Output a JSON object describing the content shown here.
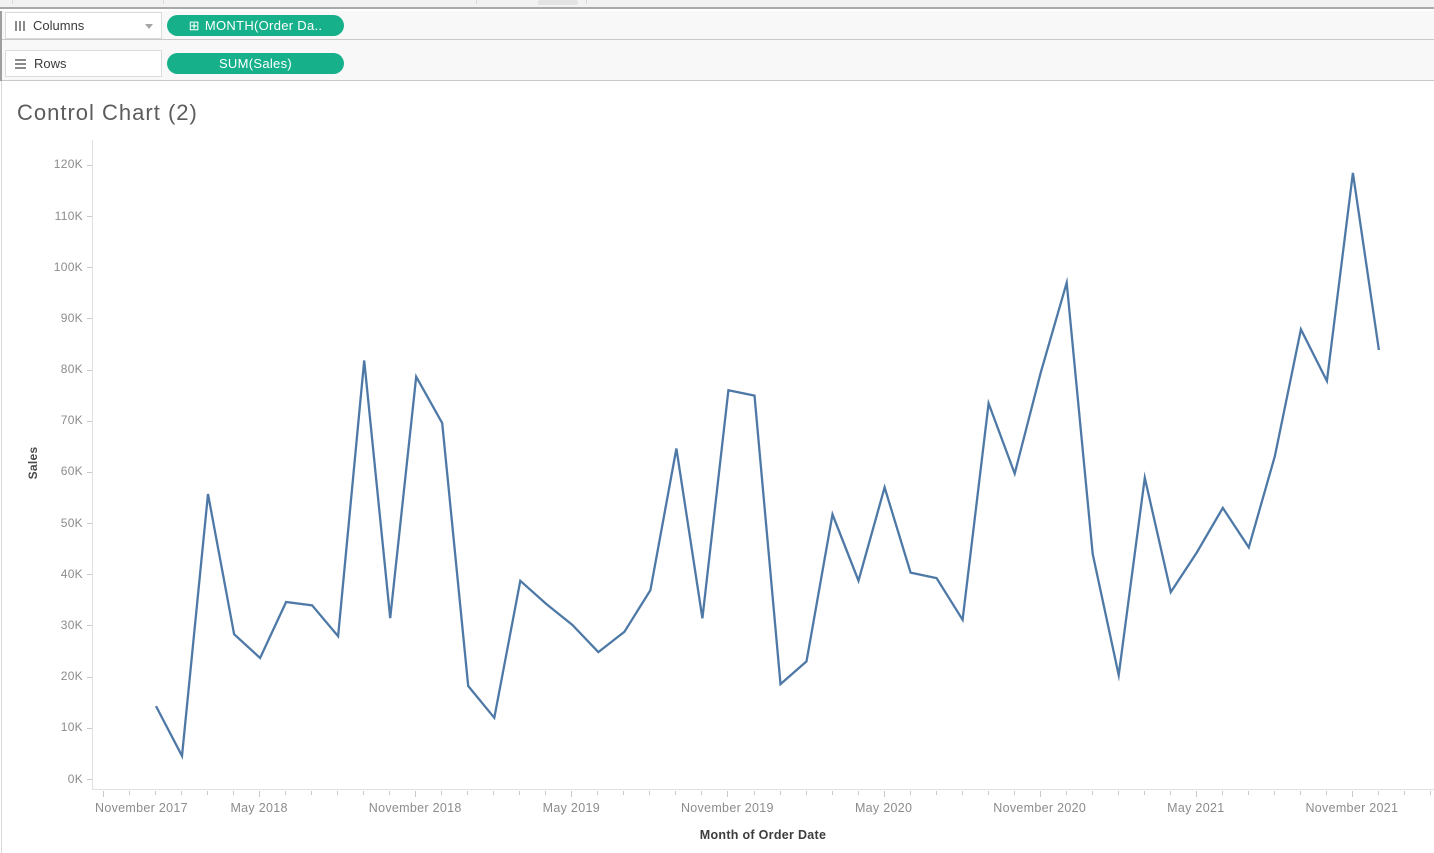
{
  "shelves": {
    "columns_label": "Columns",
    "columns_pill": "MONTH(Order Da..",
    "columns_pill_icon_glyph": "⊞",
    "rows_label": "Rows",
    "rows_pill": "SUM(Sales)"
  },
  "sheet_title": "Control Chart (2)",
  "chart_data": {
    "type": "line",
    "title": "Control Chart (2)",
    "xlabel": "Month of Order Date",
    "ylabel": "Sales",
    "series_name": "SUM(Sales)",
    "grid": "off",
    "legend": "none",
    "line_color": "#4e79a7",
    "ylim": [
      0,
      125000
    ],
    "x": [
      "2018-01",
      "2018-02",
      "2018-03",
      "2018-04",
      "2018-05",
      "2018-06",
      "2018-07",
      "2018-08",
      "2018-09",
      "2018-10",
      "2018-11",
      "2018-12",
      "2019-01",
      "2019-02",
      "2019-03",
      "2019-04",
      "2019-05",
      "2019-06",
      "2019-07",
      "2019-08",
      "2019-09",
      "2019-10",
      "2019-11",
      "2019-12",
      "2020-01",
      "2020-02",
      "2020-03",
      "2020-04",
      "2020-05",
      "2020-06",
      "2020-07",
      "2020-08",
      "2020-09",
      "2020-10",
      "2020-11",
      "2020-12",
      "2021-01",
      "2021-02",
      "2021-03",
      "2021-04",
      "2021-05",
      "2021-06",
      "2021-07",
      "2021-08",
      "2021-09",
      "2021-10",
      "2021-11",
      "2021-12"
    ],
    "values": [
      14237,
      4520,
      55691,
      28295,
      23648,
      34595,
      33946,
      27909,
      81777,
      31453,
      78629,
      69546,
      18174,
      11951,
      38726,
      34195,
      30131,
      24797,
      28765,
      36898,
      64595,
      31404,
      75973,
      74920,
      18542,
      22978,
      51716,
      38750,
      56988,
      40344,
      39262,
      31115,
      73410,
      59687,
      79411,
      96999,
      43971,
      20301,
      58872,
      36522,
      44261,
      52981,
      45264,
      63121,
      87867,
      77776,
      118448,
      83829
    ],
    "x_tick_labels": [
      "November 2017",
      "May 2018",
      "November 2018",
      "May 2019",
      "November 2019",
      "May 2020",
      "November 2020",
      "May 2021",
      "November 2021"
    ],
    "x_tick_month_offsets": [
      -2,
      4,
      10,
      16,
      22,
      28,
      34,
      40,
      46
    ],
    "y_tick_labels": [
      "0K",
      "10K",
      "20K",
      "30K",
      "40K",
      "50K",
      "60K",
      "70K",
      "80K",
      "90K",
      "100K",
      "110K",
      "120K"
    ],
    "y_tick_values": [
      0,
      10000,
      20000,
      30000,
      40000,
      50000,
      60000,
      70000,
      80000,
      90000,
      100000,
      110000,
      120000
    ]
  },
  "colors": {
    "pill_green": "#16b08a",
    "line_blue": "#4e79a7"
  }
}
